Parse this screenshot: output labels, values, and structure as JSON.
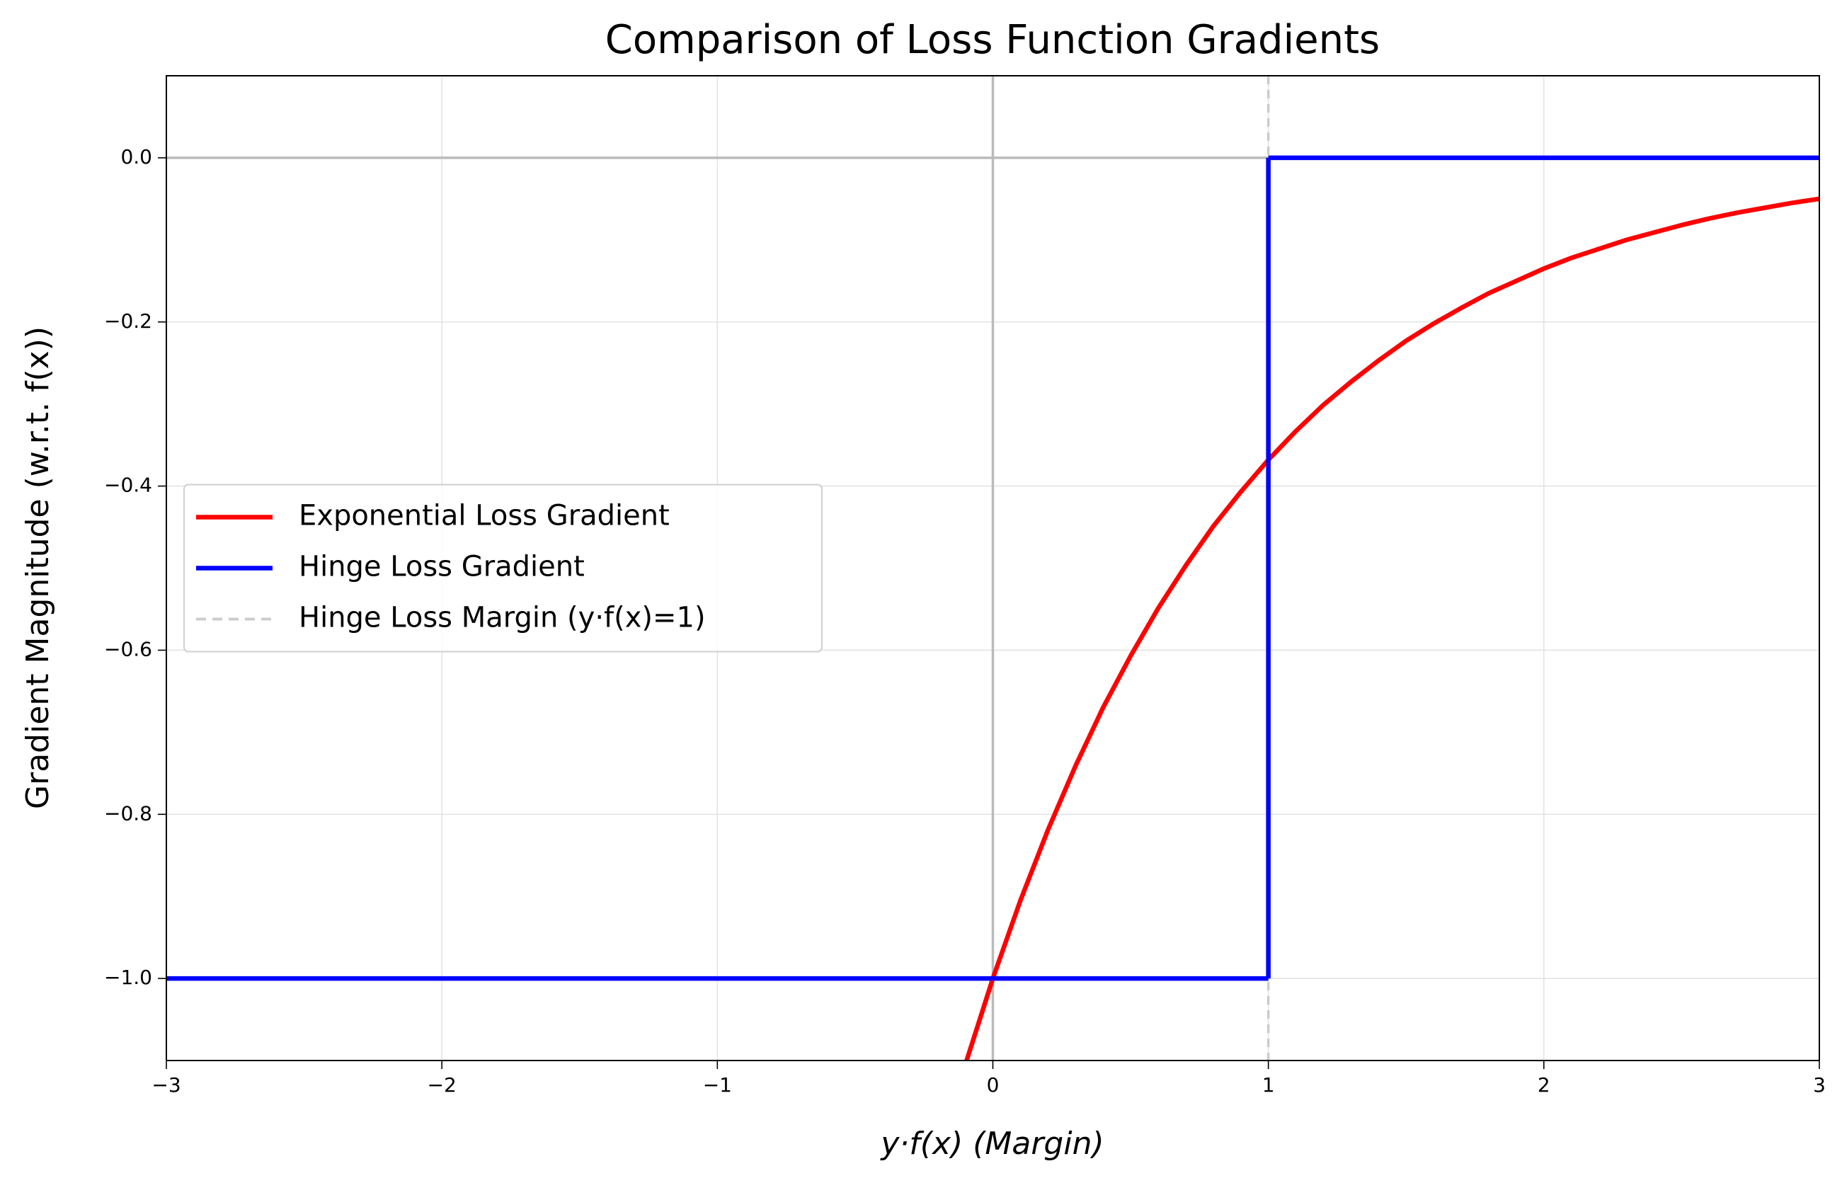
{
  "chart_data": {
    "type": "line",
    "title": "Comparison of Loss Function Gradients",
    "xlabel": "y·f(x) (Margin)",
    "ylabel": "Gradient Magnitude (w.r.t. f(x))",
    "xlim": [
      -3,
      3
    ],
    "ylim": [
      -1.1,
      0.1
    ],
    "xticks": [
      {
        "value": -3,
        "label": "−3"
      },
      {
        "value": -2,
        "label": "−2"
      },
      {
        "value": -1,
        "label": "−1"
      },
      0,
      1,
      2,
      3
    ],
    "yticks": [
      {
        "value": 0,
        "label": "0.0"
      },
      {
        "value": -0.2,
        "label": "−0.2"
      },
      {
        "value": -0.4,
        "label": "−0.4"
      },
      {
        "value": -0.6,
        "label": "−0.6"
      },
      {
        "value": -0.8,
        "label": "−0.8"
      },
      {
        "value": -1,
        "label": "−1.0"
      }
    ],
    "grid": true,
    "legend": "center left",
    "series": [
      {
        "name": "Exponential Loss Gradient",
        "color": "#ff0000",
        "x": [
          -0.2,
          -0.1,
          0,
          0.1,
          0.2,
          0.3,
          0.4,
          0.5,
          0.6,
          0.7,
          0.8,
          0.9,
          1.0,
          1.1,
          1.2,
          1.3,
          1.4,
          1.5,
          1.6,
          1.7,
          1.8,
          1.9,
          2.0,
          2.1,
          2.2,
          2.3,
          2.4,
          2.5,
          2.6,
          2.7,
          2.8,
          2.9,
          3.0
        ],
        "values": [
          -1.221,
          -1.105,
          -1.0,
          -0.905,
          -0.819,
          -0.741,
          -0.67,
          -0.607,
          -0.549,
          -0.497,
          -0.449,
          -0.407,
          -0.368,
          -0.333,
          -0.301,
          -0.273,
          -0.247,
          -0.223,
          -0.202,
          -0.183,
          -0.165,
          -0.15,
          -0.135,
          -0.122,
          -0.111,
          -0.1,
          -0.091,
          -0.082,
          -0.074,
          -0.067,
          -0.061,
          -0.055,
          -0.05
        ]
      },
      {
        "name": "Hinge Loss Gradient",
        "color": "#0000ff",
        "drawstyle": "steps-post",
        "x": [
          -3,
          1,
          3
        ],
        "values": [
          -1,
          0,
          0
        ]
      }
    ],
    "hlines": [
      {
        "y": 0,
        "color": "#bbbbbb"
      }
    ],
    "vlines": [
      {
        "x": 0,
        "color": "#bbbbbb"
      },
      {
        "x": 1,
        "color": "#cccccc",
        "dashed": true,
        "name": "Hinge Loss Margin (y·f(x)=1)"
      }
    ]
  }
}
